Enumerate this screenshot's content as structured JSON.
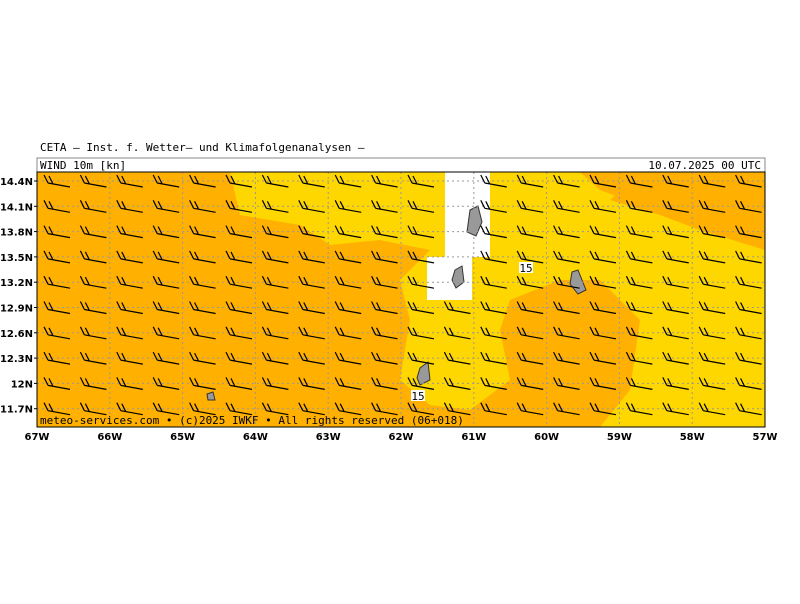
{
  "header": {
    "title": "CETA — Inst. f. Wetter— und Klimafolgenanalysen —",
    "field": "WIND 10m [kn]",
    "valid": "10.07.2025 00 UTC"
  },
  "map": {
    "lat_labels": [
      "14.4N",
      "14.1N",
      "13.8N",
      "13.5N",
      "13.2N",
      "12.9N",
      "12.6N",
      "12.3N",
      "12N",
      "11.7N"
    ],
    "lon_labels": [
      "67W",
      "66W",
      "65W",
      "64W",
      "63W",
      "62W",
      "61W",
      "60W",
      "59W",
      "58W",
      "57W"
    ],
    "contour_labels": [
      "15",
      "15"
    ],
    "footer": "meteo-services.com • (c)2025 IWKF • All rights reserved (06+018)"
  }
}
